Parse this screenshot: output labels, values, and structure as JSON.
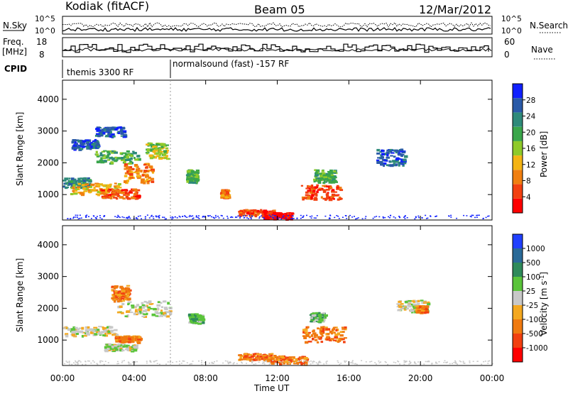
{
  "header": {
    "station": "Kodiak (fitACF)",
    "beam": "Beam 05",
    "date": "12/Mar/2012"
  },
  "top_panels": {
    "nsky_label": "N.Sky",
    "nsearch_label": "N.Search",
    "nsky_ticks": [
      "10^5",
      "10^0"
    ],
    "nsearch_ticks": [
      "10^5",
      "10^0"
    ],
    "freq_label_1": "Freq.",
    "freq_label_2": "[MHz]",
    "freq_ticks": [
      "18",
      "8"
    ],
    "nave_label": "Nave",
    "nave_ticks": [
      "60",
      "0"
    ],
    "cpid_label": "CPID",
    "cpid_segments": [
      "themis 3300 RF",
      "normalsound (fast) -157 RF"
    ]
  },
  "chart_data": [
    {
      "type": "heatmap",
      "name": "power",
      "ylabel": "Slant Range [km]",
      "yticks": [
        1000,
        2000,
        3000,
        4000
      ],
      "ylim": [
        200,
        4600
      ],
      "colorbar_label": "Power [dB]",
      "colorbar_ticks": [
        "28",
        "24",
        "20",
        "16",
        "12",
        "8",
        "4"
      ],
      "colors": [
        "#1020ff",
        "#2a5aa8",
        "#2e8a7a",
        "#3aa64a",
        "#8fca2a",
        "#f4b414",
        "#f07f10",
        "#f24010",
        "#ff0000"
      ],
      "blobs": [
        {
          "t": 0.5,
          "r": 1400,
          "dt": 2.0,
          "dr": 300,
          "c": 2
        },
        {
          "t": 1.8,
          "r": 1200,
          "dt": 2.8,
          "dr": 350,
          "c": 5
        },
        {
          "t": 3.2,
          "r": 1050,
          "dt": 2.2,
          "dr": 300,
          "c": 7
        },
        {
          "t": 3.0,
          "r": 2200,
          "dt": 2.4,
          "dr": 400,
          "c": 3
        },
        {
          "t": 4.2,
          "r": 1700,
          "dt": 1.6,
          "dr": 600,
          "c": 6
        },
        {
          "t": 5.2,
          "r": 2400,
          "dt": 1.2,
          "dr": 500,
          "c": 4
        },
        {
          "t": 2.6,
          "r": 3000,
          "dt": 1.6,
          "dr": 300,
          "c": 1
        },
        {
          "t": 1.2,
          "r": 2600,
          "dt": 1.5,
          "dr": 300,
          "c": 1
        },
        {
          "t": 9.0,
          "r": 1050,
          "dt": 0.4,
          "dr": 250,
          "c": 6
        },
        {
          "t": 10.8,
          "r": 450,
          "dt": 2.0,
          "dr": 200,
          "c": 7
        },
        {
          "t": 12.0,
          "r": 350,
          "dt": 1.6,
          "dr": 200,
          "c": 8
        },
        {
          "t": 14.4,
          "r": 1100,
          "dt": 2.2,
          "dr": 450,
          "c": 7
        },
        {
          "t": 14.6,
          "r": 1600,
          "dt": 1.2,
          "dr": 400,
          "c": 3
        },
        {
          "t": 18.3,
          "r": 2200,
          "dt": 1.6,
          "dr": 500,
          "c": 1
        },
        {
          "t": 7.2,
          "r": 1600,
          "dt": 0.6,
          "dr": 400,
          "c": 3
        }
      ]
    },
    {
      "type": "heatmap",
      "name": "velocity",
      "ylabel": "Slant Range [km]",
      "yticks": [
        1000,
        2000,
        3000,
        4000
      ],
      "ylim": [
        200,
        4600
      ],
      "colorbar_label": "Velocity [m s",
      "colorbar_exp": "-1",
      "colorbar_ticks": [
        "1000",
        "500",
        "100",
        "25",
        "-25",
        "-100",
        "-500",
        "-1000"
      ],
      "colors": [
        "#2040ff",
        "#2a6a98",
        "#2e8a5a",
        "#5ac43a",
        "#c8c8c8",
        "#f4a820",
        "#f07a10",
        "#f24010",
        "#ff0000"
      ],
      "blobs": [
        {
          "t": 1.5,
          "r": 1300,
          "dt": 3.0,
          "dr": 300,
          "c": 4
        },
        {
          "t": 4.5,
          "r": 2000,
          "dt": 3.0,
          "dr": 500,
          "c": 4
        },
        {
          "t": 3.2,
          "r": 800,
          "dt": 1.8,
          "dr": 200,
          "c": 4
        },
        {
          "t": 3.6,
          "r": 1050,
          "dt": 1.4,
          "dr": 200,
          "c": 6
        },
        {
          "t": 3.2,
          "r": 2500,
          "dt": 1.0,
          "dr": 500,
          "c": 6
        },
        {
          "t": 7.4,
          "r": 1700,
          "dt": 0.8,
          "dr": 300,
          "c": 3
        },
        {
          "t": 10.8,
          "r": 500,
          "dt": 2.0,
          "dr": 200,
          "c": 6
        },
        {
          "t": 12.5,
          "r": 400,
          "dt": 2.2,
          "dr": 250,
          "c": 6
        },
        {
          "t": 14.6,
          "r": 1200,
          "dt": 2.4,
          "dr": 500,
          "c": 6
        },
        {
          "t": 14.2,
          "r": 1750,
          "dt": 0.8,
          "dr": 300,
          "c": 3
        },
        {
          "t": 19.5,
          "r": 2100,
          "dt": 1.8,
          "dr": 350,
          "c": 4
        },
        {
          "t": 20.0,
          "r": 2000,
          "dt": 0.6,
          "dr": 200,
          "c": 6
        }
      ]
    }
  ],
  "xaxis": {
    "label": "Time UT",
    "ticks": [
      "00:00",
      "04:00",
      "08:00",
      "12:00",
      "16:00",
      "20:00",
      "00:00"
    ],
    "xlim": [
      0,
      24
    ]
  }
}
